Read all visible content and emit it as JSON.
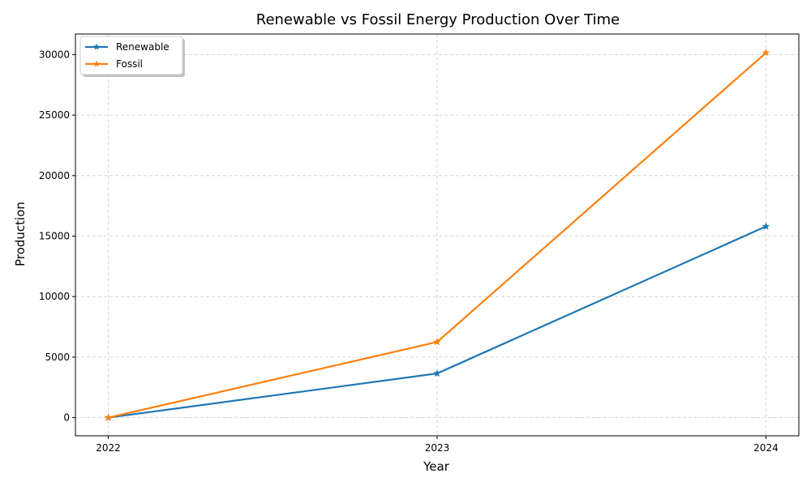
{
  "chart_data": {
    "type": "line",
    "title": "Renewable vs Fossil Energy Production Over Time",
    "xlabel": "Year",
    "ylabel": "Production",
    "x": [
      2022,
      2023,
      2024
    ],
    "x_tick_labels": [
      "2022",
      "2023",
      "2024"
    ],
    "y_ticks": [
      0,
      5000,
      10000,
      15000,
      20000,
      25000,
      30000
    ],
    "y_tick_labels": [
      "0",
      "5000",
      "10000",
      "15000",
      "20000",
      "25000",
      "30000"
    ],
    "ylim": [
      -1500,
      31700
    ],
    "xlim": [
      2021.9,
      2024.1
    ],
    "grid": true,
    "legend_position": "upper-left",
    "series": [
      {
        "name": "Renewable",
        "color": "#1f77b4",
        "marker": "star",
        "values": [
          0,
          3650,
          15800
        ]
      },
      {
        "name": "Fossil",
        "color": "#ff7f0e",
        "marker": "star",
        "values": [
          0,
          6250,
          30150
        ]
      }
    ]
  }
}
